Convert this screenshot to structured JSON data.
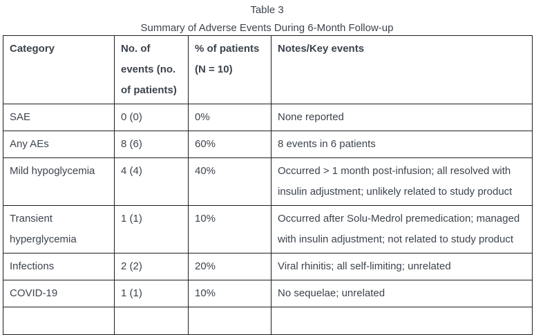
{
  "page": {
    "title": "Table 3",
    "subtitle": "Summary of Adverse Events During 6-Month Follow-up"
  },
  "table": {
    "columns": [
      "Category",
      "No. of events (no. of patients)",
      "% of patients (N = 10)",
      "Notes/Key events"
    ],
    "rows": [
      [
        "SAE",
        "0 (0)",
        "0%",
        "None reported"
      ],
      [
        "Any AEs",
        "8 (6)",
        "60%",
        "8 events in 6 patients"
      ],
      [
        "Mild hypoglycemia",
        "4 (4)",
        "40%",
        "Occurred > 1 month post-infusion; all resolved with insulin adjustment; unlikely related to study product"
      ],
      [
        "Transient hyperglycemia",
        "1 (1)",
        "10%",
        "Occurred after Solu-Medrol premedication; managed with insulin adjustment; not related to study product"
      ],
      [
        "Infections",
        "2 (2)",
        "20%",
        "Viral rhinitis; all self-limiting; unrelated"
      ],
      [
        "COVID-19",
        "1 (1)",
        "10%",
        "No sequelae; unrelated"
      ]
    ]
  },
  "colors": {
    "text": "#3c434c",
    "border": "#1c1c1c",
    "background": "#ffffff"
  }
}
